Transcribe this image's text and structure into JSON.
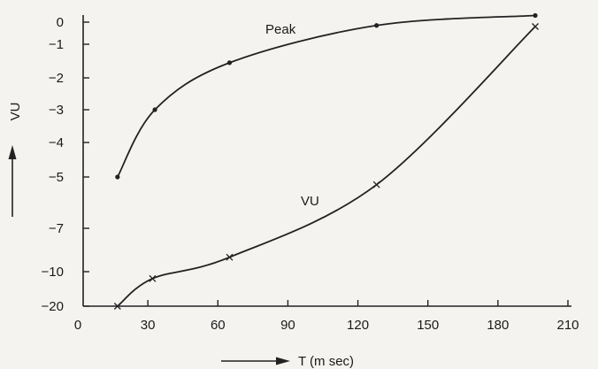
{
  "chart_data": {
    "type": "line",
    "title": "",
    "xlabel": "T (m sec)",
    "ylabel": "VU",
    "xlim": [
      0,
      210
    ],
    "x_ticks": [
      0,
      30,
      60,
      90,
      120,
      150,
      180,
      210
    ],
    "y_ticks": [
      0,
      -1,
      -2,
      -3,
      -4,
      -5,
      -7,
      -10,
      -20
    ],
    "y_scale": "nonlinear (tick labels unevenly spaced)",
    "grid": false,
    "legend": "none",
    "series": [
      {
        "name": "Peak",
        "marker": "dot",
        "x": [
          17,
          33,
          65,
          128,
          196
        ],
        "y": [
          -5,
          -3,
          -1.55,
          -0.15,
          0.3
        ]
      },
      {
        "name": "VU",
        "marker": "x",
        "x": [
          17,
          32,
          65,
          128,
          196
        ],
        "y": [
          -20,
          -12,
          -9,
          -5.3,
          -0.2
        ]
      }
    ]
  }
}
